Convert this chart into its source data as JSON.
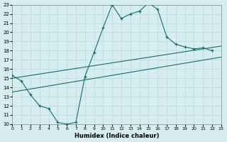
{
  "xlabel": "Humidex (Indice chaleur)",
  "bg_color": "#d6eef0",
  "grid_color": "#b8d8dc",
  "line_color": "#1a6b6b",
  "xlim": [
    0,
    23
  ],
  "ylim": [
    10,
    23
  ],
  "xticks": [
    0,
    1,
    2,
    3,
    4,
    5,
    6,
    7,
    8,
    9,
    10,
    11,
    12,
    13,
    14,
    15,
    16,
    17,
    18,
    19,
    20,
    21,
    22,
    23
  ],
  "yticks": [
    10,
    11,
    12,
    13,
    14,
    15,
    16,
    17,
    18,
    19,
    20,
    21,
    22,
    23
  ],
  "curve1_x": [
    0,
    1,
    2,
    3,
    4,
    5,
    6,
    7,
    8,
    9,
    10,
    11,
    12,
    13,
    14,
    15,
    16,
    17,
    18,
    19,
    20,
    21,
    22
  ],
  "curve1_y": [
    15.3,
    14.7,
    13.2,
    12.0,
    11.7,
    10.2,
    10.0,
    10.2,
    15.2,
    17.8,
    20.5,
    23.0,
    21.5,
    22.0,
    22.3,
    23.2,
    22.5,
    19.5,
    18.7,
    18.4,
    18.2,
    18.3,
    18.0
  ],
  "line2_x": [
    0,
    23
  ],
  "line2_y": [
    15.0,
    18.5
  ],
  "line3_x": [
    0,
    23
  ],
  "line3_y": [
    13.5,
    17.3
  ]
}
